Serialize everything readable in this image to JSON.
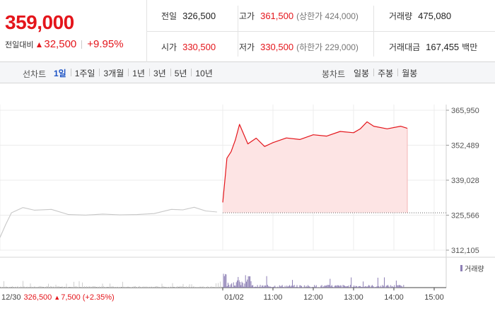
{
  "quote": {
    "price": "359,000",
    "change_label": "전일대비",
    "change_value": "32,500",
    "change_pct": "+9.95%",
    "prev_close_label": "전일",
    "prev_close": "326,500",
    "open_label": "시가",
    "open": "330,500",
    "high_label": "고가",
    "high": "361,500",
    "high_limit": "(상한가 424,000)",
    "low_label": "저가",
    "low": "330,500",
    "low_limit": "(하한가 229,000)",
    "volume_label": "거래량",
    "volume": "475,080",
    "trade_value_label": "거래대금",
    "trade_value": "167,455",
    "trade_value_unit": "백만"
  },
  "toolbar": {
    "line_chart_title": "선차트",
    "periods": [
      "1일",
      "1주일",
      "3개월",
      "1년",
      "3년",
      "5년",
      "10년"
    ],
    "active_period": "1일",
    "candle_chart_title": "봉차트",
    "candles": [
      "일봉",
      "주봉",
      "월봉"
    ]
  },
  "chart_data": {
    "type": "line",
    "y_tick_labels": [
      "365,950",
      "352,489",
      "339,028",
      "325,566",
      "312,105"
    ],
    "ylim": [
      312105,
      365950
    ],
    "x_tick_labels": [
      "01/02",
      "11:00",
      "12:00",
      "13:00",
      "14:00",
      "15:00"
    ],
    "prev_close_line": 326500,
    "series": [
      {
        "name": "",
        "color": "#c8c8c8",
        "x": [
          "12/30 09:00",
          "12/30 09:10",
          "12/30 09:20",
          "12/30 09:40",
          "12/30 10:00",
          "12/30 10:30",
          "12/30 11:00",
          "12/30 11:30",
          "12/30 12:00",
          "12/30 12:30",
          "12/30 13:00",
          "12/30 13:30",
          "12/30 14:00",
          "12/30 14:20",
          "12/30 14:40",
          "12/30 15:00",
          "12/30 15:20"
        ],
        "values": [
          317000,
          322000,
          326500,
          328500,
          327500,
          327800,
          325800,
          325600,
          326000,
          325700,
          325800,
          326200,
          327800,
          327600,
          328600,
          327200,
          326800
        ]
      },
      {
        "name": "",
        "color": "#e4151b",
        "x": [
          "01/02 09:00",
          "01/02 09:05",
          "01/02 09:10",
          "01/02 09:20",
          "01/02 09:30",
          "01/02 09:40",
          "01/02 10:00",
          "01/02 10:20",
          "01/02 10:40",
          "01/02 11:00",
          "01/02 11:20",
          "01/02 11:40",
          "01/02 12:00",
          "01/02 12:20",
          "01/02 12:40",
          "01/02 13:00",
          "01/02 13:10",
          "01/02 13:20",
          "01/02 13:30",
          "01/02 13:50",
          "01/02 14:10",
          "01/02 14:20"
        ],
        "values": [
          330500,
          339000,
          347500,
          350000,
          354500,
          360500,
          353000,
          355200,
          352000,
          353500,
          355300,
          354700,
          356500,
          356000,
          357800,
          357300,
          358800,
          361500,
          359800,
          358800,
          359800,
          359000
        ]
      }
    ]
  },
  "volume": {
    "legend": "거래량"
  },
  "bottom_info": {
    "date": "12/30",
    "close": "326,500",
    "change": "7,500",
    "pct": "(+2.35%)"
  }
}
